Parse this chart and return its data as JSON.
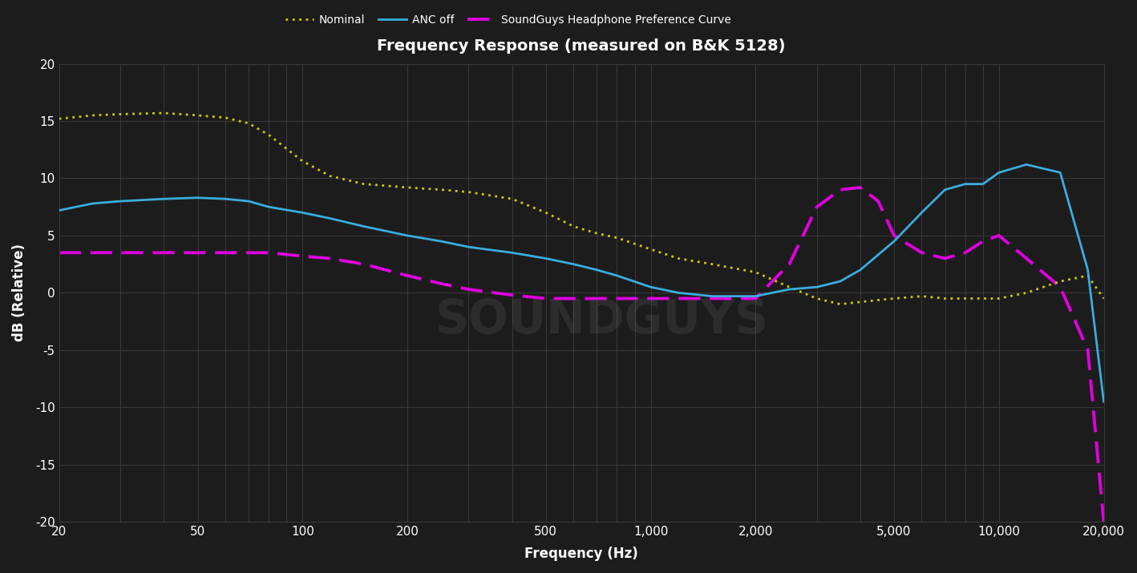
{
  "title": "Frequency Response (measured on B&K 5128)",
  "xlabel": "Frequency (Hz)",
  "ylabel": "dB (Relative)",
  "bg_color": "#1c1c1c",
  "text_color": "#ffffff",
  "grid_color": "#3a3a3a",
  "ylim": [
    -20,
    20
  ],
  "xlim": [
    20,
    20000
  ],
  "yticks": [
    -20,
    -15,
    -10,
    -5,
    0,
    5,
    10,
    15,
    20
  ],
  "xticks": [
    20,
    50,
    100,
    200,
    500,
    1000,
    2000,
    5000,
    10000,
    20000
  ],
  "xtick_labels": [
    "20",
    "50",
    "100",
    "200",
    "500",
    "1,000",
    "2,000",
    "5,000",
    "10,000",
    "20,000"
  ],
  "nominal_color": "#cccc00",
  "anc_off_color": "#3aacde",
  "pref_color": "#dd00dd",
  "nominal_label": "Nominal",
  "anc_off_label": "ANC off",
  "pref_label": "SoundGuys Headphone Preference Curve",
  "nominal_freq": [
    20,
    25,
    30,
    40,
    50,
    60,
    70,
    80,
    100,
    120,
    150,
    200,
    250,
    300,
    400,
    500,
    600,
    700,
    800,
    1000,
    1200,
    1500,
    2000,
    2500,
    3000,
    3500,
    4000,
    5000,
    6000,
    7000,
    8000,
    9000,
    10000,
    12000,
    15000,
    18000,
    20000
  ],
  "nominal_db": [
    15.2,
    15.5,
    15.6,
    15.7,
    15.5,
    15.3,
    14.8,
    13.8,
    11.5,
    10.2,
    9.5,
    9.2,
    9.0,
    8.8,
    8.2,
    7.0,
    5.8,
    5.2,
    4.8,
    3.8,
    3.0,
    2.5,
    1.8,
    0.5,
    -0.5,
    -1.0,
    -0.8,
    -0.5,
    -0.3,
    -0.5,
    -0.5,
    -0.5,
    -0.5,
    0.0,
    1.0,
    1.5,
    -0.5
  ],
  "anc_off_freq": [
    20,
    25,
    30,
    40,
    50,
    60,
    70,
    80,
    100,
    120,
    150,
    200,
    250,
    300,
    400,
    500,
    600,
    700,
    800,
    1000,
    1200,
    1500,
    2000,
    2500,
    3000,
    3500,
    4000,
    5000,
    6000,
    7000,
    8000,
    9000,
    10000,
    12000,
    15000,
    18000,
    20000
  ],
  "anc_off_db": [
    7.2,
    7.8,
    8.0,
    8.2,
    8.3,
    8.2,
    8.0,
    7.5,
    7.0,
    6.5,
    5.8,
    5.0,
    4.5,
    4.0,
    3.5,
    3.0,
    2.5,
    2.0,
    1.5,
    0.5,
    0.0,
    -0.3,
    -0.3,
    0.3,
    0.5,
    1.0,
    2.0,
    4.5,
    7.0,
    9.0,
    9.5,
    9.5,
    10.5,
    11.2,
    10.5,
    2.0,
    -9.5
  ],
  "pref_freq": [
    20,
    25,
    30,
    40,
    50,
    60,
    70,
    80,
    100,
    120,
    150,
    200,
    250,
    300,
    400,
    500,
    600,
    700,
    800,
    1000,
    1200,
    1500,
    2000,
    2500,
    3000,
    3500,
    4000,
    4500,
    5000,
    6000,
    7000,
    8000,
    9000,
    10000,
    12000,
    15000,
    18000,
    20000
  ],
  "pref_db": [
    3.5,
    3.5,
    3.5,
    3.5,
    3.5,
    3.5,
    3.5,
    3.5,
    3.2,
    3.0,
    2.5,
    1.5,
    0.8,
    0.3,
    -0.2,
    -0.5,
    -0.5,
    -0.5,
    -0.5,
    -0.5,
    -0.5,
    -0.5,
    -0.5,
    2.5,
    7.5,
    9.0,
    9.2,
    8.0,
    5.0,
    3.5,
    3.0,
    3.5,
    4.5,
    5.0,
    3.0,
    0.5,
    -5.0,
    -20.0
  ]
}
